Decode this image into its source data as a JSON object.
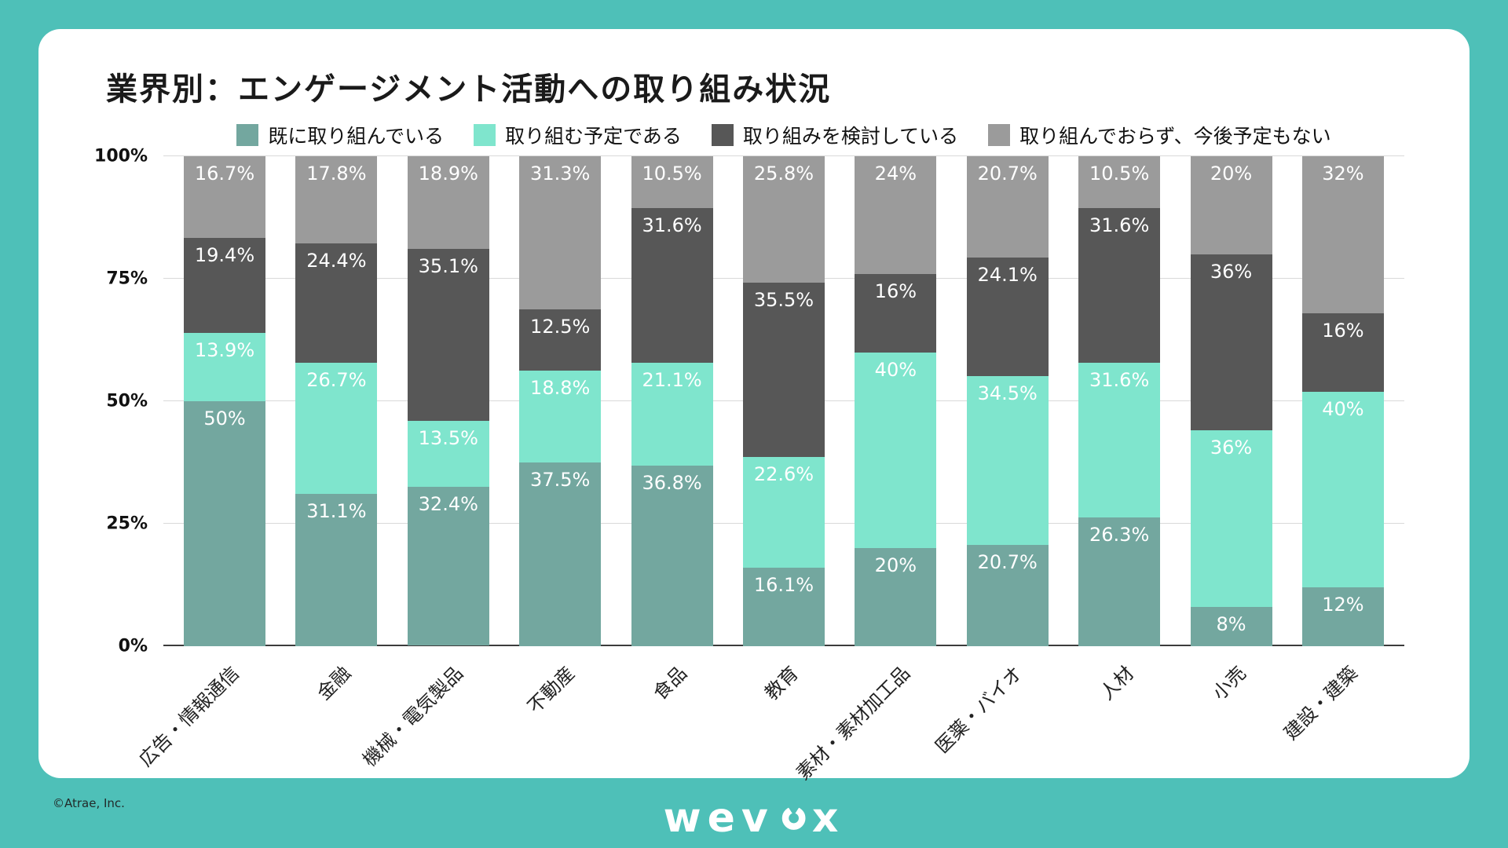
{
  "page": {
    "background_color": "#4EC0B8",
    "card_color": "#FFFFFF"
  },
  "footer": {
    "copyright": "©Atrae, Inc.",
    "brand": "wevox",
    "logo_part1": "wev",
    "logo_part2": "x"
  },
  "chart_data": {
    "type": "bar",
    "stacked": true,
    "title": "業界別：エンゲージメント活動への取り組み状況",
    "legend_position": "top",
    "grid": true,
    "ylim": [
      0,
      100
    ],
    "y_ticks": [
      "0%",
      "25%",
      "50%",
      "75%",
      "100%"
    ],
    "value_suffix": "%",
    "categories": [
      "広告・情報通信",
      "金融",
      "機械・電気製品",
      "不動産",
      "食品",
      "教育",
      "素材・素材加工品",
      "医薬・バイオ",
      "人材",
      "小売",
      "建設・建築"
    ],
    "series": [
      {
        "name": "既に取り組んでいる",
        "color": "#73A79F",
        "values": [
          50,
          31.1,
          32.4,
          37.5,
          36.8,
          16.1,
          20,
          20.7,
          26.3,
          8,
          12
        ]
      },
      {
        "name": "取り組む予定である",
        "color": "#7FE5CD",
        "values": [
          13.9,
          26.7,
          13.5,
          18.8,
          21.1,
          22.6,
          40,
          34.5,
          31.6,
          36,
          40
        ]
      },
      {
        "name": "取り組みを検討している",
        "color": "#575757",
        "values": [
          19.4,
          24.4,
          35.1,
          12.5,
          31.6,
          35.5,
          16,
          24.1,
          31.6,
          36,
          16
        ]
      },
      {
        "name": "取り組んでおらず、今後予定もない",
        "color": "#9B9B9B",
        "values": [
          16.7,
          17.8,
          18.9,
          31.3,
          10.5,
          25.8,
          24,
          20.7,
          10.5,
          20,
          32
        ]
      }
    ]
  }
}
